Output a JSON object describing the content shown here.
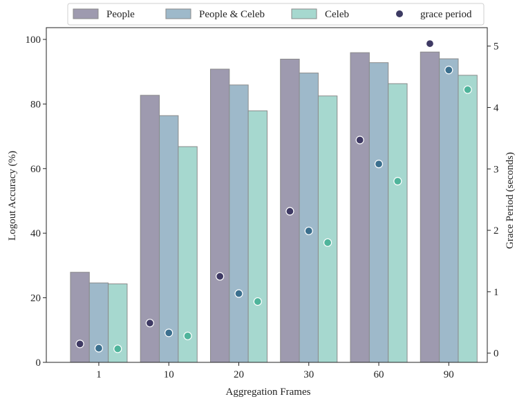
{
  "chart_data": {
    "type": "bar",
    "xlabel": "Aggregation Frames",
    "ylabel": "Logout Accuracy (%)",
    "y2label": "Grace Period (seconds)",
    "categories": [
      "1",
      "10",
      "20",
      "30",
      "60",
      "90"
    ],
    "ylim": [
      0,
      100
    ],
    "yticks": [
      "0",
      "20",
      "40",
      "60",
      "80",
      "100"
    ],
    "y2lim": [
      -0.15,
      5.3
    ],
    "y2ticks": [
      "0",
      "1",
      "2",
      "3",
      "4",
      "5"
    ],
    "grid": false,
    "legend_position": "top",
    "series": [
      {
        "name": "People",
        "values": [
          27.9,
          82.7,
          90.8,
          93.9,
          95.9,
          96.1
        ],
        "color": "#9e9aaf"
      },
      {
        "name": "People & Celeb",
        "values": [
          24.6,
          76.4,
          85.9,
          89.6,
          92.8,
          94.0
        ],
        "color": "#9eb9ca"
      },
      {
        "name": "Celeb",
        "values": [
          24.3,
          66.8,
          77.9,
          82.5,
          86.3,
          88.9
        ],
        "color": "#a6d8cf"
      }
    ],
    "grace_period": {
      "name": "grace period",
      "legend_color": "#3d3b63",
      "series": [
        {
          "values": [
            0.15,
            0.49,
            1.25,
            2.31,
            3.47,
            5.04
          ],
          "color": "#3f3a64"
        },
        {
          "values": [
            0.08,
            0.33,
            0.97,
            1.99,
            3.08,
            4.61
          ],
          "color": "#3b6f8e"
        },
        {
          "values": [
            0.07,
            0.28,
            0.84,
            1.8,
            2.8,
            4.29
          ],
          "color": "#4fb49b"
        }
      ]
    }
  }
}
